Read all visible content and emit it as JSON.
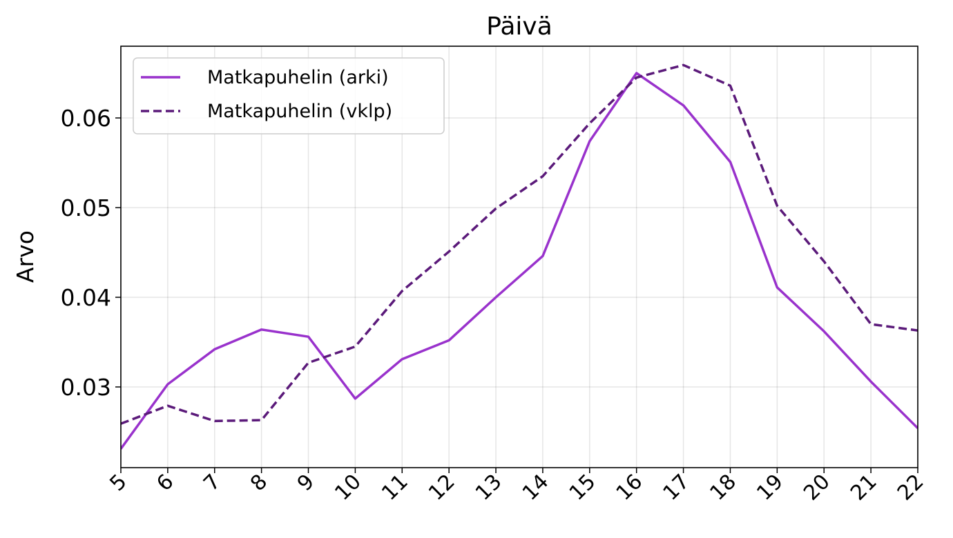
{
  "chart_data": {
    "type": "line",
    "title": "Päivä",
    "xlabel": "",
    "ylabel": "Arvo",
    "x": [
      5,
      6,
      7,
      8,
      9,
      10,
      11,
      12,
      13,
      14,
      15,
      16,
      17,
      18,
      19,
      20,
      21,
      22
    ],
    "x_tick_labels": [
      "5",
      "6",
      "7",
      "8",
      "9",
      "10",
      "11",
      "12",
      "13",
      "14",
      "15",
      "16",
      "17",
      "18",
      "19",
      "20",
      "21",
      "22"
    ],
    "y_ticks": [
      0.03,
      0.04,
      0.05,
      0.06
    ],
    "y_tick_labels": [
      "0.03",
      "0.04",
      "0.05",
      "0.06"
    ],
    "xlim": [
      5,
      22
    ],
    "ylim": [
      0.021,
      0.068
    ],
    "grid": true,
    "legend_position": "top-left",
    "series": [
      {
        "name": "Matkapuhelin (arki)",
        "color": "#9932CC",
        "style": "solid",
        "values": [
          0.0231,
          0.0303,
          0.0342,
          0.0364,
          0.0356,
          0.0287,
          0.0331,
          0.0352,
          0.04,
          0.0446,
          0.0574,
          0.065,
          0.0614,
          0.0551,
          0.0411,
          0.0362,
          0.0306,
          0.0254
        ]
      },
      {
        "name": "Matkapuhelin (vklp)",
        "color": "#5B1A7A",
        "style": "dashed",
        "values": [
          0.0259,
          0.0279,
          0.0262,
          0.0263,
          0.0327,
          0.0345,
          0.0407,
          0.0451,
          0.0499,
          0.0535,
          0.0594,
          0.0645,
          0.0659,
          0.0636,
          0.0502,
          0.044,
          0.037,
          0.0363
        ]
      }
    ]
  }
}
